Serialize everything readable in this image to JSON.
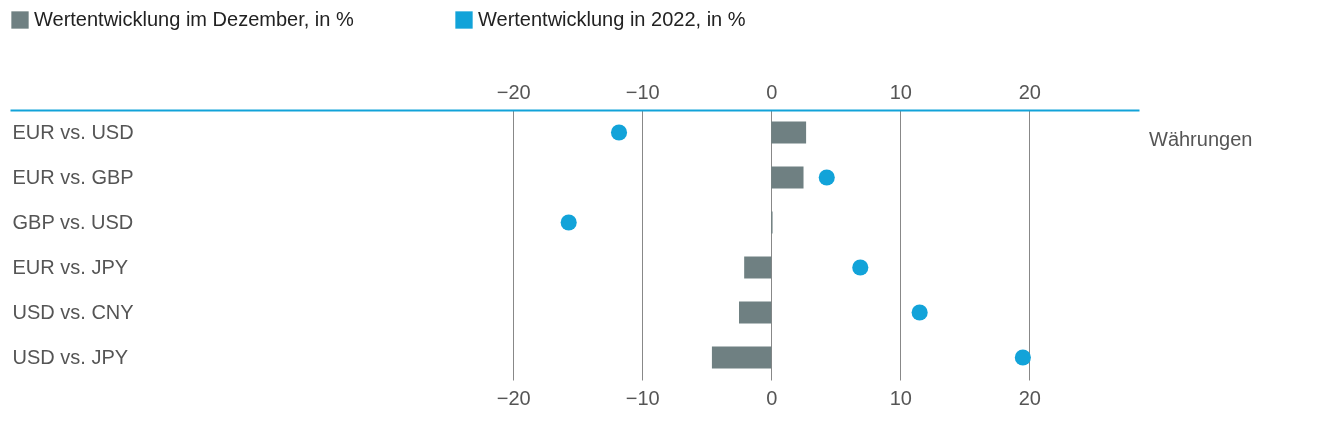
{
  "chart_data": {
    "type": "bar",
    "orientation": "horizontal",
    "categories": [
      "EUR vs. USD",
      "EUR vs. GBP",
      "GBP vs. USD",
      "EUR vs. JPY",
      "USD vs. CNY",
      "USD vs. JPY"
    ],
    "series": [
      {
        "name": "Wertentwicklung im Dezember, in %",
        "color": "#6f8082",
        "values": [
          2.7,
          2.5,
          0.1,
          -2.1,
          -2.5,
          -4.6
        ]
      },
      {
        "name": "Wertentwicklung in 2022, in %",
        "type": "scatter",
        "color": "#12a3d9",
        "values": [
          -11.8,
          4.3,
          -15.7,
          6.9,
          11.5,
          19.5
        ]
      }
    ],
    "xlim": [
      -59,
      28.5
    ],
    "xticks": [
      -20,
      -10,
      0,
      10,
      20
    ],
    "x2lim": [
      -59,
      28.5
    ],
    "x2ticks": [
      -20,
      -10,
      0,
      10,
      20
    ],
    "grid": "x",
    "legend": "top",
    "marker": "circle",
    "annotations": [
      "Währungen"
    ]
  }
}
